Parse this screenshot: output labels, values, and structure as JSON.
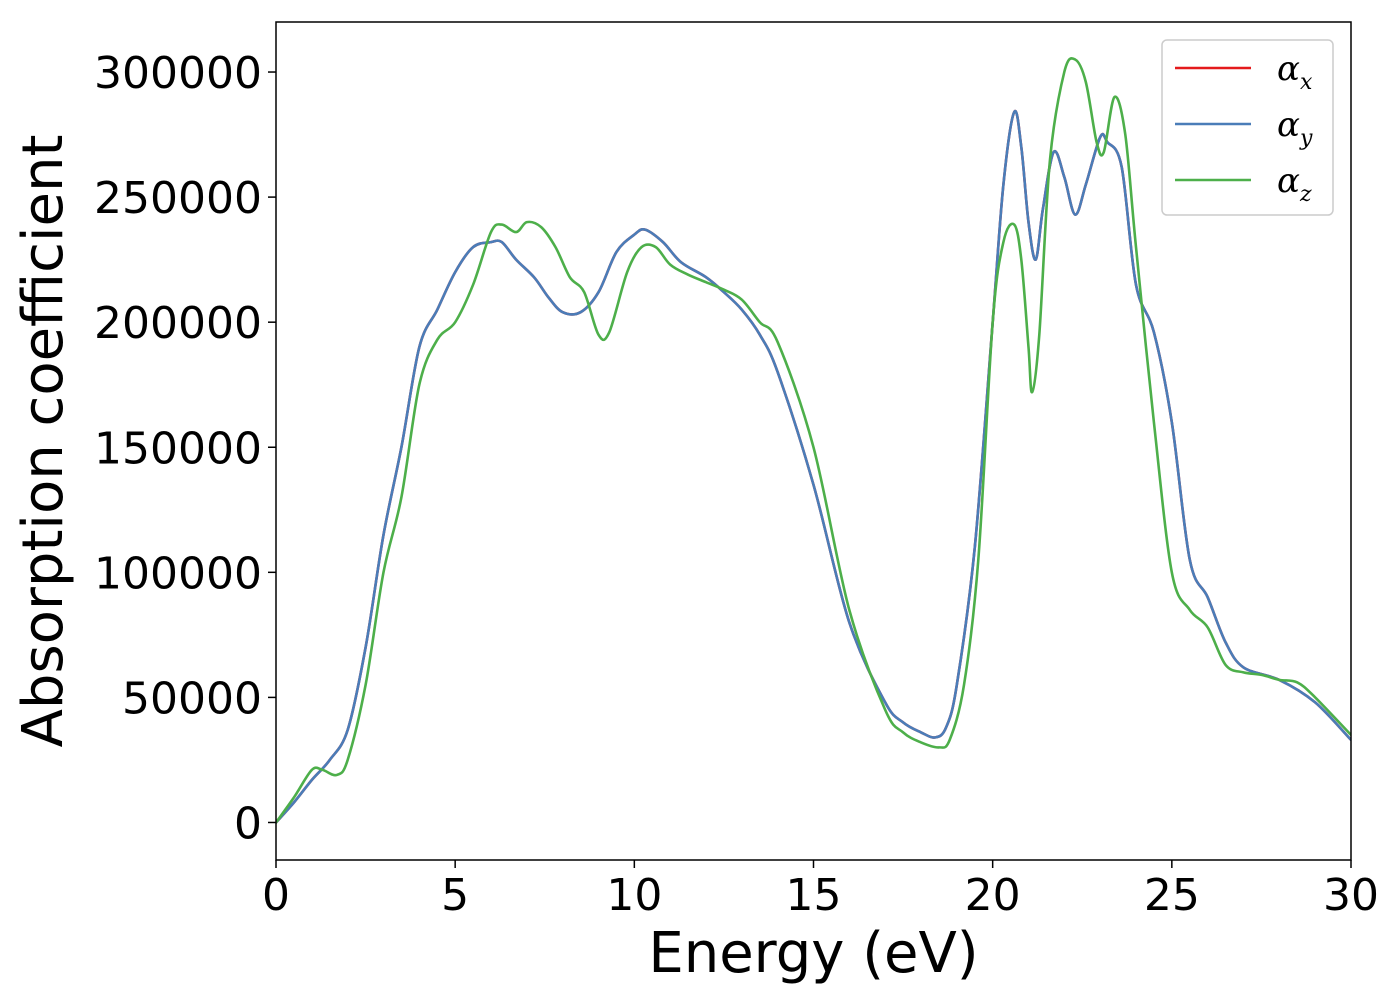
{
  "chart_data": {
    "type": "line",
    "title": "",
    "xlabel": "Energy (eV)",
    "ylabel": "Absorption coefficient",
    "xlim": [
      0,
      30
    ],
    "ylim": [
      -15000,
      320000
    ],
    "xticks": [
      0,
      5,
      10,
      15,
      20,
      25,
      30
    ],
    "yticks": [
      0,
      50000,
      100000,
      150000,
      200000,
      250000,
      300000
    ],
    "grid": false,
    "legend_position": "top-right",
    "series": [
      {
        "name": "α",
        "subscript": "x",
        "color": "#e41a1c",
        "x": [
          0,
          0.5,
          1.0,
          1.5,
          2.0,
          2.5,
          3.0,
          3.5,
          4.0,
          4.5,
          5.0,
          5.5,
          6.0,
          6.3,
          6.7,
          7.2,
          7.6,
          8.0,
          8.5,
          9.0,
          9.5,
          10.0,
          10.3,
          10.8,
          11.3,
          12.0,
          12.5,
          13.0,
          13.5,
          14.0,
          15.0,
          16.0,
          17.0,
          17.5,
          18.0,
          18.4,
          18.7,
          19.0,
          19.5,
          20.0,
          20.3,
          20.6,
          20.8,
          21.0,
          21.2,
          21.4,
          21.7,
          22.0,
          22.3,
          22.6,
          23.0,
          23.2,
          23.6,
          24.0,
          24.5,
          25.0,
          25.5,
          26.0,
          26.5,
          27.0,
          28.0,
          29.0,
          30.0
        ],
        "values": [
          0,
          8000,
          17000,
          25000,
          37000,
          70000,
          115000,
          150000,
          190000,
          205000,
          220000,
          230000,
          232000,
          232000,
          225000,
          218000,
          210000,
          204000,
          204000,
          212000,
          228000,
          235000,
          237000,
          232000,
          224000,
          218000,
          212000,
          205000,
          195000,
          180000,
          135000,
          80000,
          48000,
          40000,
          36000,
          34000,
          38000,
          55000,
          110000,
          200000,
          255000,
          284000,
          270000,
          240000,
          225000,
          245000,
          268000,
          258000,
          243000,
          255000,
          274000,
          272000,
          262000,
          215000,
          196000,
          160000,
          105000,
          90000,
          72000,
          62000,
          57000,
          48000,
          33000
        ]
      },
      {
        "name": "α",
        "subscript": "y",
        "color": "#4a7db8",
        "x": [
          0,
          0.5,
          1.0,
          1.5,
          2.0,
          2.5,
          3.0,
          3.5,
          4.0,
          4.5,
          5.0,
          5.5,
          6.0,
          6.3,
          6.7,
          7.2,
          7.6,
          8.0,
          8.5,
          9.0,
          9.5,
          10.0,
          10.3,
          10.8,
          11.3,
          12.0,
          12.5,
          13.0,
          13.5,
          14.0,
          15.0,
          16.0,
          17.0,
          17.5,
          18.0,
          18.4,
          18.7,
          19.0,
          19.5,
          20.0,
          20.3,
          20.6,
          20.8,
          21.0,
          21.2,
          21.4,
          21.7,
          22.0,
          22.3,
          22.6,
          23.0,
          23.2,
          23.6,
          24.0,
          24.5,
          25.0,
          25.5,
          26.0,
          26.5,
          27.0,
          28.0,
          29.0,
          30.0
        ],
        "values": [
          0,
          8000,
          17000,
          25000,
          37000,
          70000,
          115000,
          150000,
          190000,
          205000,
          220000,
          230000,
          232000,
          232000,
          225000,
          218000,
          210000,
          204000,
          204000,
          212000,
          228000,
          235000,
          237000,
          232000,
          224000,
          218000,
          212000,
          205000,
          195000,
          180000,
          135000,
          80000,
          48000,
          40000,
          36000,
          34000,
          38000,
          55000,
          110000,
          200000,
          255000,
          284000,
          270000,
          240000,
          225000,
          245000,
          268000,
          258000,
          243000,
          255000,
          274000,
          272000,
          262000,
          215000,
          196000,
          160000,
          105000,
          90000,
          72000,
          62000,
          57000,
          48000,
          33000
        ]
      },
      {
        "name": "α",
        "subscript": "z",
        "color": "#4daf4a",
        "x": [
          0,
          0.5,
          1.0,
          1.3,
          1.7,
          2.0,
          2.5,
          3.0,
          3.5,
          4.0,
          4.5,
          5.0,
          5.5,
          6.0,
          6.3,
          6.7,
          7.0,
          7.4,
          7.8,
          8.2,
          8.6,
          9.0,
          9.3,
          9.8,
          10.2,
          10.6,
          11.0,
          11.5,
          12.0,
          12.5,
          13.0,
          13.5,
          14.0,
          15.0,
          16.0,
          17.0,
          17.5,
          18.0,
          18.5,
          18.8,
          19.2,
          19.6,
          20.0,
          20.3,
          20.6,
          20.8,
          21.0,
          21.1,
          21.3,
          21.6,
          22.0,
          22.3,
          22.6,
          22.9,
          23.1,
          23.4,
          23.7,
          24.0,
          24.5,
          25.0,
          25.5,
          26.0,
          26.5,
          27.0,
          27.5,
          28.0,
          28.5,
          29.0,
          30.0
        ],
        "values": [
          0,
          10000,
          21000,
          21000,
          19000,
          25000,
          55000,
          100000,
          130000,
          175000,
          193000,
          200000,
          215000,
          236000,
          239000,
          236000,
          240000,
          238000,
          230000,
          218000,
          212000,
          195000,
          196000,
          220000,
          230000,
          230000,
          223000,
          219000,
          216000,
          213000,
          209000,
          200000,
          192000,
          150000,
          85000,
          45000,
          36000,
          32000,
          30000,
          33000,
          55000,
          105000,
          200000,
          232000,
          239000,
          225000,
          190000,
          172000,
          195000,
          265000,
          300000,
          305000,
          296000,
          272000,
          268000,
          290000,
          275000,
          230000,
          160000,
          100000,
          85000,
          78000,
          63000,
          60000,
          59000,
          57000,
          56000,
          50000,
          35000
        ]
      }
    ]
  }
}
